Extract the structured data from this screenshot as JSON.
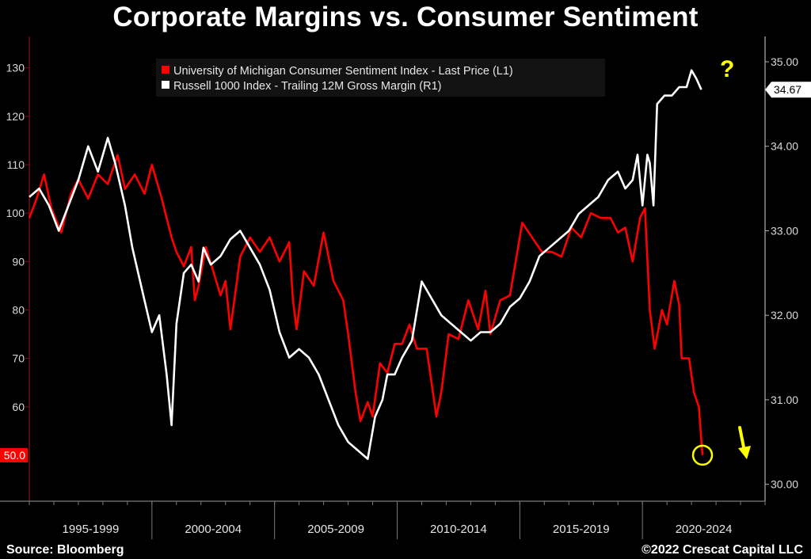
{
  "header": {
    "title": "Corporate Margins vs. Consumer Sentiment"
  },
  "footer": {
    "source": "Source: Bloomberg",
    "copyright": "©2022 Crescat Capital LLC"
  },
  "chart_data": {
    "type": "line",
    "legend_position": "top-center",
    "grid": false,
    "x_periods": [
      "1995-1999",
      "2000-2004",
      "2005-2009",
      "2010-2014",
      "2015-2019",
      "2020-2024"
    ],
    "xlim": [
      1995,
      2025
    ],
    "left_axis": {
      "ticks": [
        "60",
        "70",
        "80",
        "90",
        "100",
        "110",
        "120",
        "130"
      ],
      "tick_values": [
        60,
        70,
        80,
        90,
        100,
        110,
        120,
        130
      ],
      "range": [
        40.5,
        136.5
      ]
    },
    "right_axis": {
      "ticks": [
        "30.00",
        "31.00",
        "32.00",
        "33.00",
        "34.00",
        "35.00"
      ],
      "tick_values": [
        30,
        31,
        32,
        33,
        34,
        35
      ],
      "range": [
        29.8,
        35.3
      ]
    },
    "last_values": {
      "left": "50.0",
      "right": "34.67"
    },
    "colors": {
      "sentiment": "#ff0000",
      "margin": "#ffffff",
      "annotation": "#ffff00"
    },
    "annotations": {
      "question_mark": "?"
    },
    "series": [
      {
        "name": "University of Michigan Consumer Sentiment Index - Last Price (L1)",
        "axis": "left",
        "color": "#ff0000",
        "x": [
          1995.0,
          1995.3,
          1995.6,
          1995.9,
          1996.3,
          1996.7,
          1997.0,
          1997.4,
          1997.8,
          1998.2,
          1998.6,
          1998.9,
          1999.3,
          1999.7,
          2000.0,
          2000.4,
          2000.8,
          2001.0,
          2001.3,
          2001.6,
          2001.75,
          2001.9,
          2002.2,
          2002.5,
          2002.8,
          2003.0,
          2003.2,
          2003.6,
          2004.0,
          2004.4,
          2004.8,
          2005.2,
          2005.6,
          2005.75,
          2005.9,
          2006.2,
          2006.6,
          2007.0,
          2007.4,
          2007.8,
          2008.0,
          2008.3,
          2008.5,
          2008.8,
          2009.0,
          2009.3,
          2009.6,
          2009.9,
          2010.2,
          2010.5,
          2010.8,
          2011.2,
          2011.6,
          2011.8,
          2012.1,
          2012.5,
          2012.9,
          2013.3,
          2013.6,
          2013.8,
          2014.2,
          2014.6,
          2014.9,
          2015.1,
          2015.5,
          2015.9,
          2016.3,
          2016.7,
          2017.1,
          2017.5,
          2017.9,
          2018.3,
          2018.7,
          2019.0,
          2019.3,
          2019.6,
          2019.9,
          2020.1,
          2020.3,
          2020.5,
          2020.8,
          2021.0,
          2021.3,
          2021.5,
          2021.6,
          2021.9,
          2022.1,
          2022.3,
          2022.45
        ],
        "values": [
          99,
          103,
          108,
          101,
          96,
          104,
          107,
          103,
          108,
          106,
          112,
          105,
          108,
          104,
          110,
          103,
          95,
          92,
          89,
          93,
          82,
          85,
          93,
          88,
          83,
          86,
          76,
          91,
          95,
          92,
          95,
          90,
          94,
          82,
          76,
          88,
          85,
          96,
          86,
          82,
          75,
          63,
          57,
          61,
          58,
          69,
          67,
          73,
          73,
          77,
          72,
          72,
          58,
          63,
          75,
          74,
          82,
          76,
          84,
          75,
          82,
          83,
          92,
          98,
          95,
          92,
          92,
          91,
          97,
          95,
          100,
          99,
          99,
          96,
          97,
          90,
          99,
          101,
          80,
          72,
          80,
          77,
          86,
          81,
          70,
          70,
          63,
          60,
          50
        ]
      },
      {
        "name": "Russell 1000 Index - Trailing 12M Gross Margin (R1)",
        "axis": "right",
        "color": "#ffffff",
        "x": [
          1995.0,
          1995.4,
          1995.8,
          1996.2,
          1996.6,
          1997.0,
          1997.4,
          1997.8,
          1998.2,
          1998.5,
          1998.9,
          1999.2,
          1999.6,
          2000.0,
          2000.3,
          2000.6,
          2000.8,
          2001.0,
          2001.3,
          2001.6,
          2001.9,
          2002.1,
          2002.4,
          2002.8,
          2003.2,
          2003.6,
          2004.0,
          2004.4,
          2004.8,
          2005.2,
          2005.6,
          2006.0,
          2006.4,
          2006.8,
          2007.2,
          2007.6,
          2008.0,
          2008.4,
          2008.8,
          2009.1,
          2009.4,
          2009.6,
          2009.9,
          2010.2,
          2010.6,
          2011.0,
          2011.4,
          2011.8,
          2012.2,
          2012.6,
          2013.0,
          2013.4,
          2013.8,
          2014.2,
          2014.6,
          2015.0,
          2015.4,
          2015.8,
          2016.2,
          2016.6,
          2017.0,
          2017.4,
          2017.8,
          2018.2,
          2018.6,
          2019.0,
          2019.3,
          2019.6,
          2019.8,
          2020.0,
          2020.2,
          2020.3,
          2020.45,
          2020.6,
          2020.9,
          2021.2,
          2021.5,
          2021.8,
          2022.0,
          2022.2,
          2022.4
        ],
        "values": [
          33.4,
          33.5,
          33.3,
          33.0,
          33.3,
          33.6,
          34.0,
          33.7,
          34.1,
          33.8,
          33.3,
          32.8,
          32.3,
          31.8,
          32.0,
          31.3,
          30.7,
          31.9,
          32.5,
          32.6,
          32.4,
          32.8,
          32.6,
          32.7,
          32.9,
          33.0,
          32.8,
          32.6,
          32.3,
          31.8,
          31.5,
          31.6,
          31.5,
          31.3,
          31.0,
          30.7,
          30.5,
          30.4,
          30.3,
          30.8,
          31.0,
          31.3,
          31.3,
          31.5,
          31.7,
          32.4,
          32.2,
          32.0,
          31.9,
          31.8,
          31.7,
          31.8,
          31.8,
          31.9,
          32.1,
          32.2,
          32.4,
          32.7,
          32.8,
          32.9,
          33.0,
          33.2,
          33.3,
          33.4,
          33.6,
          33.7,
          33.5,
          33.6,
          33.9,
          33.3,
          33.9,
          33.8,
          33.3,
          34.5,
          34.6,
          34.6,
          34.7,
          34.7,
          34.9,
          34.8,
          34.67
        ]
      }
    ]
  }
}
